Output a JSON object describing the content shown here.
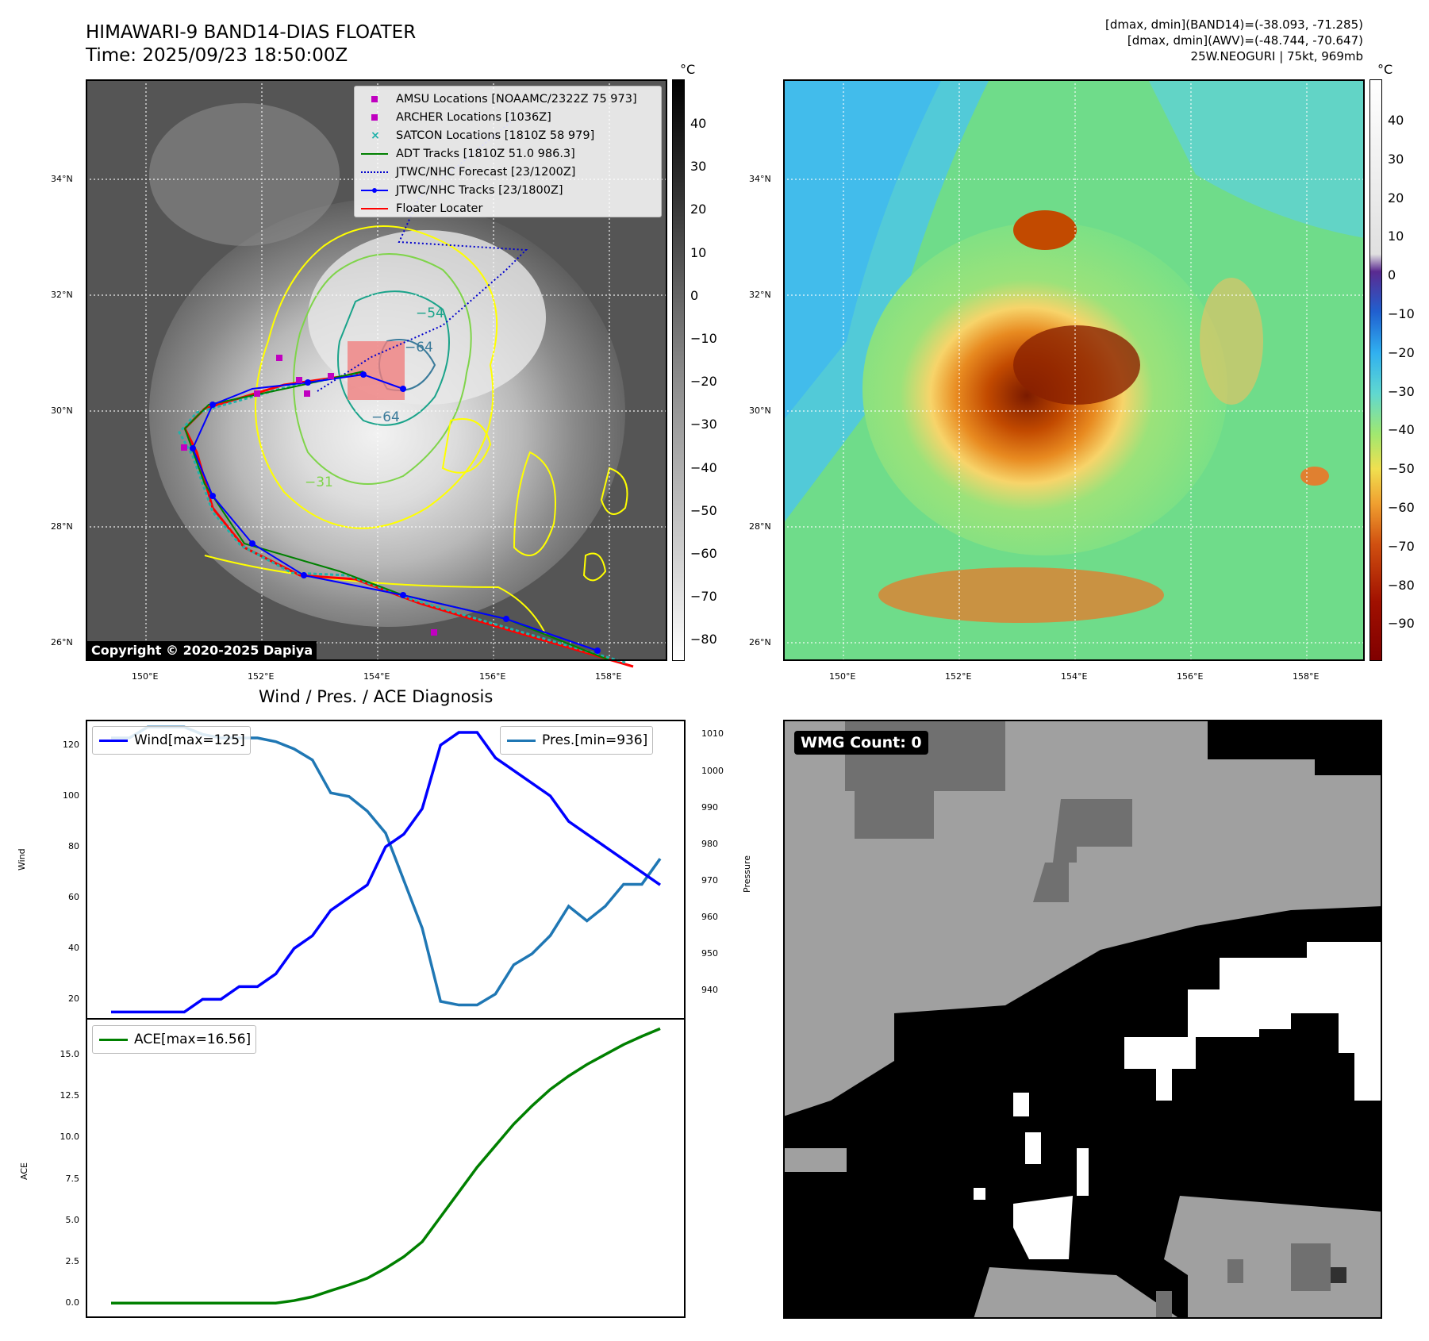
{
  "header": {
    "title_line1": "HIMAWARI-9 BAND14-DIAS FLOATER",
    "title_line2": "Time: 2025/09/23 18:50:00Z",
    "right_line1": "[dmax, dmin](BAND14)=(-38.093, -71.285)",
    "right_line2": "[dmax, dmin](AWV)=(-48.744, -70.647)",
    "right_line3": "25W.NEOGURI | 75kt, 969mb"
  },
  "ir_map": {
    "lat_ticks": [
      "34°N",
      "32°N",
      "30°N",
      "28°N",
      "26°N"
    ],
    "lon_ticks": [
      "150°E",
      "152°E",
      "154°E",
      "156°E",
      "158°E"
    ],
    "contour_labels": [
      "−54",
      "−64",
      "−64",
      "−31"
    ],
    "copyright": "Copyright © 2020-2025 Dapiya",
    "legend": [
      {
        "label": "AMSU Locations [NOAAMC/2322Z 75 973]",
        "symbol": "square",
        "color": "#c000c0"
      },
      {
        "label": "ARCHER Locations [1036Z]",
        "symbol": "square",
        "color": "#c000c0"
      },
      {
        "label": "SATCON Locations [1810Z 58 979]",
        "symbol": "x",
        "color": "#20b2aa"
      },
      {
        "label": "ADT Tracks [1810Z 51.0 986.3]",
        "symbol": "line",
        "color": "#008000"
      },
      {
        "label": "JTWC/NHC Forecast [23/1200Z]",
        "symbol": "dotted",
        "color": "#0000cc"
      },
      {
        "label": "JTWC/NHC Tracks [23/1800Z]",
        "symbol": "line-dot",
        "color": "#0000ff"
      },
      {
        "label": "Floater Locater",
        "symbol": "line",
        "color": "#ff0000"
      }
    ],
    "colorbar": {
      "unit": "°C",
      "ticks": [
        "40",
        "30",
        "20",
        "10",
        "0",
        "−10",
        "−20",
        "−30",
        "−40",
        "−50",
        "−60",
        "−70",
        "−80"
      ]
    }
  },
  "awv_map": {
    "lat_ticks": [
      "34°N",
      "32°N",
      "30°N",
      "28°N",
      "26°N"
    ],
    "lon_ticks": [
      "150°E",
      "152°E",
      "154°E",
      "156°E",
      "158°E"
    ],
    "colorbar": {
      "unit": "°C",
      "ticks": [
        "40",
        "30",
        "20",
        "10",
        "0",
        "−10",
        "−20",
        "−30",
        "−40",
        "−50",
        "−60",
        "−70",
        "−80",
        "−90"
      ]
    }
  },
  "diagnosis": {
    "title": "Wind / Pres. / ACE Diagnosis",
    "wind_label": "Wind",
    "pressure_label": "Pressure",
    "ace_label": "ACE",
    "wind_legend": "Wind[max=125]",
    "pres_legend": "Pres.[min=936]",
    "ace_legend": "ACE[max=16.56]",
    "wind_ticks": [
      "120",
      "100",
      "80",
      "60",
      "40",
      "20"
    ],
    "pres_ticks": [
      "1010",
      "1000",
      "990",
      "980",
      "970",
      "960",
      "950",
      "940"
    ],
    "ace_ticks": [
      "15.0",
      "12.5",
      "10.0",
      "7.5",
      "5.0",
      "2.5",
      "0.0"
    ]
  },
  "wmg": {
    "badge": "WMG Count: 0"
  },
  "chart_data": [
    {
      "type": "line",
      "title": "Wind / Pres. / ACE Diagnosis",
      "ylabel": "Wind",
      "y2label": "Pressure",
      "ylim": [
        12,
        130
      ],
      "y2lim": [
        932,
        1014
      ],
      "series": [
        {
          "name": "Wind[max=125]",
          "color": "#0000ff",
          "axis": "left",
          "values": [
            15,
            15,
            15,
            15,
            15,
            20,
            20,
            25,
            25,
            30,
            40,
            45,
            55,
            60,
            65,
            80,
            85,
            95,
            120,
            125,
            125,
            115,
            110,
            105,
            100,
            90,
            85,
            80,
            75,
            70,
            65
          ]
        },
        {
          "name": "Pres.[min=936]",
          "color": "#1f77b4",
          "axis": "right",
          "values": [
            1009,
            1009,
            1012,
            1012,
            1012,
            1010,
            1009,
            1009,
            1009,
            1008,
            1006,
            1003,
            994,
            993,
            989,
            983,
            970,
            957,
            937,
            936,
            936,
            939,
            947,
            950,
            955,
            963,
            959,
            963,
            969,
            969,
            976
          ]
        }
      ]
    },
    {
      "type": "line",
      "ylabel": "ACE",
      "ylim": [
        -0.9,
        17.2
      ],
      "series": [
        {
          "name": "ACE[max=16.56]",
          "color": "#008000",
          "values": [
            0,
            0,
            0,
            0,
            0,
            0,
            0,
            0,
            0,
            0,
            0.15,
            0.38,
            0.75,
            1.1,
            1.5,
            2.1,
            2.8,
            3.7,
            5.2,
            6.7,
            8.2,
            9.5,
            10.8,
            11.9,
            12.9,
            13.7,
            14.4,
            15.0,
            15.6,
            16.1,
            16.56
          ]
        }
      ]
    }
  ]
}
